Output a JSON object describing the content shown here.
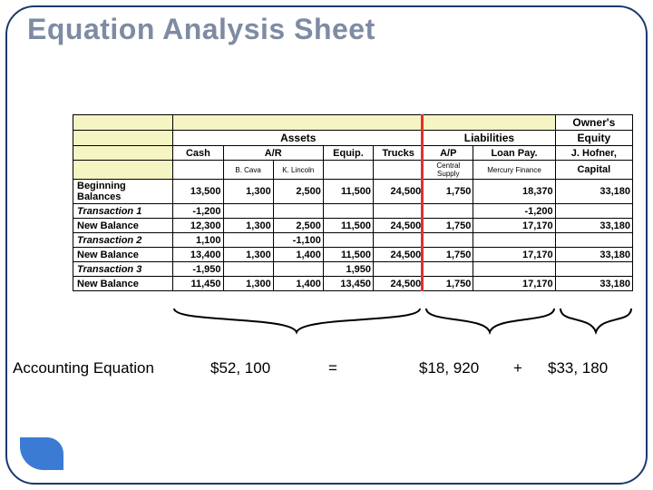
{
  "title": "Equation Analysis Sheet",
  "colors": {
    "frame": "#1a3a6e",
    "title_text": "#7e8ba3",
    "header_fill": "#f5f4c3",
    "table_border": "#000000",
    "divider": "#e03030",
    "corner_shape": "#3b7bd4",
    "equation_text": "#000000"
  },
  "table": {
    "group_headers": {
      "assets": "Assets",
      "liabilities": "Liabilities",
      "owners_equity_line1": "Owner's",
      "owners_equity_line2": "Equity"
    },
    "column_headers": {
      "cash": "Cash",
      "ar": "A/R",
      "equip": "Equip.",
      "trucks": "Trucks",
      "ap": "A/P",
      "loan_pay": "Loan Pay.",
      "capital_line1": "J. Hofner,",
      "capital_line2": "Capital"
    },
    "sub_headers": {
      "ar_bcava": "B. Cava",
      "ar_klincoln": "K. Lincoln",
      "ap_central": "Central Supply",
      "loan_mercury": "Mercury Finance"
    },
    "rows": [
      {
        "label": "Beginning Balances",
        "italic": false,
        "cash": "13,500",
        "ar1": "1,300",
        "ar2": "2,500",
        "equip": "11,500",
        "trucks": "24,500",
        "ap": "1,750",
        "loan": "18,370",
        "capital": "33,180"
      },
      {
        "label": "Transaction 1",
        "italic": true,
        "cash": "-1,200",
        "ar1": "",
        "ar2": "",
        "equip": "",
        "trucks": "",
        "ap": "",
        "loan": "-1,200",
        "capital": ""
      },
      {
        "label": "New Balance",
        "italic": false,
        "cash": "12,300",
        "ar1": "1,300",
        "ar2": "2,500",
        "equip": "11,500",
        "trucks": "24,500",
        "ap": "1,750",
        "loan": "17,170",
        "capital": "33,180"
      },
      {
        "label": "Transaction 2",
        "italic": true,
        "cash": "1,100",
        "ar1": "",
        "ar2": "-1,100",
        "equip": "",
        "trucks": "",
        "ap": "",
        "loan": "",
        "capital": ""
      },
      {
        "label": "New Balance",
        "italic": false,
        "cash": "13,400",
        "ar1": "1,300",
        "ar2": "1,400",
        "equip": "11,500",
        "trucks": "24,500",
        "ap": "1,750",
        "loan": "17,170",
        "capital": "33,180"
      },
      {
        "label": "Transaction 3",
        "italic": true,
        "cash": "-1,950",
        "ar1": "",
        "ar2": "",
        "equip": "1,950",
        "trucks": "",
        "ap": "",
        "loan": "",
        "capital": ""
      },
      {
        "label": "New Balance",
        "italic": false,
        "cash": "11,450",
        "ar1": "1,300",
        "ar2": "1,400",
        "equip": "13,450",
        "trucks": "24,500",
        "ap": "1,750",
        "loan": "17,170",
        "capital": "33,180"
      }
    ]
  },
  "equation": {
    "label": "Accounting Equation",
    "assets_total": "$52, 100",
    "equals": "=",
    "liabilities_total": "$18, 920",
    "plus": "+",
    "equity_total": "$33, 180"
  }
}
